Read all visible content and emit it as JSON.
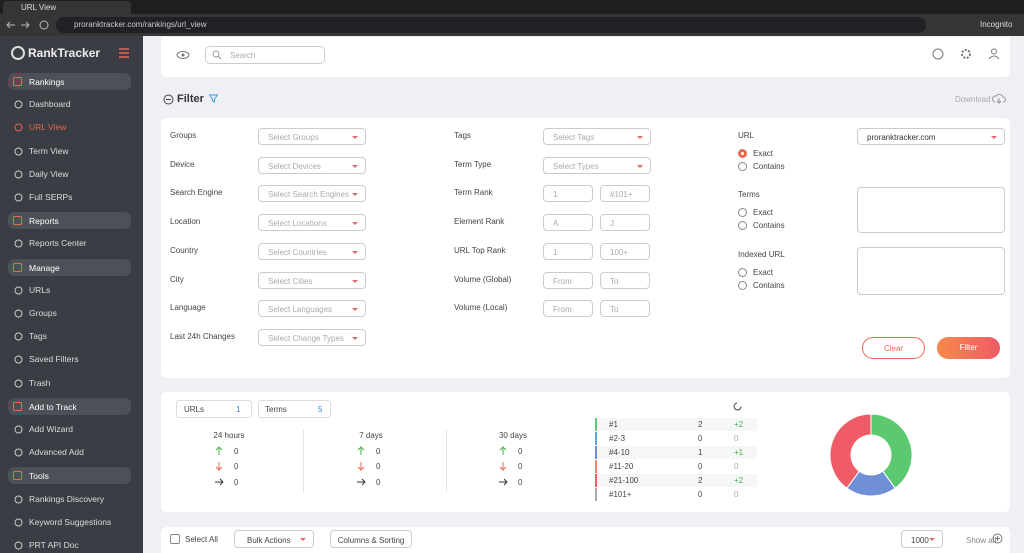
{
  "browser": {
    "tab_title": "URL View",
    "url": "proranktracker.com/rankings/url_view",
    "incognito": "Incognito"
  },
  "sidebar": {
    "logo": "RankTracker",
    "sections": [
      {
        "title": "Rankings",
        "items": [
          "Dashboard",
          "URL View",
          "Term View",
          "Daily View",
          "Full SERPs"
        ]
      },
      {
        "title": "Reports",
        "items": [
          "Reports Center"
        ]
      },
      {
        "title": "Manage",
        "items": [
          "URLs",
          "Groups",
          "Tags",
          "Saved Filters",
          "Trash"
        ]
      },
      {
        "title": "Add to Track",
        "items": [
          "Add Wizard",
          "Advanced Add"
        ]
      },
      {
        "title": "Tools",
        "items": [
          "Rankings Discovery",
          "Keyword Suggestions",
          "PRT API Doc"
        ]
      }
    ]
  },
  "topbar": {
    "search_placeholder": "Search"
  },
  "filter": {
    "title": "Filter",
    "download": "Download",
    "left": [
      {
        "label": "Groups",
        "placeholder": "Select Groups"
      },
      {
        "label": "Device",
        "placeholder": "Select Devices"
      },
      {
        "label": "Search Engine",
        "placeholder": "Select Search Engines"
      },
      {
        "label": "Location",
        "placeholder": "Select Locations"
      },
      {
        "label": "Country",
        "placeholder": "Select Countries"
      },
      {
        "label": "City",
        "placeholder": "Select Cities"
      },
      {
        "label": "Language",
        "placeholder": "Select Languages"
      },
      {
        "label": "Last 24h Changes",
        "placeholder": "Select Change Types"
      }
    ],
    "middle": [
      {
        "label": "Tags",
        "placeholder": "Select Tags"
      },
      {
        "label": "Term Type",
        "placeholder": "Select Types"
      },
      {
        "label": "Term Rank",
        "from": "1",
        "to": "#101+"
      },
      {
        "label": "Element Rank",
        "from": "A",
        "to": "J"
      },
      {
        "label": "URL Top Rank",
        "from": "1",
        "to": "100+"
      },
      {
        "label": "Volume (Global)",
        "from": "From",
        "to": "To"
      },
      {
        "label": "Volume (Local)",
        "from": "From",
        "to": "To"
      }
    ],
    "right": [
      {
        "label": "URL",
        "select": "proranktracker.com",
        "options": [
          "Exact",
          "Contains"
        ]
      },
      {
        "label": "Terms",
        "options": [
          "Exact",
          "Contains"
        ]
      },
      {
        "label": "Indexed URL",
        "options": [
          "Exact",
          "Contains"
        ]
      }
    ],
    "clear": "Clear",
    "submit": "Filter"
  },
  "stats": {
    "urls_label": "URLs",
    "urls": 1,
    "terms_label": "Terms",
    "terms": 5,
    "periods": [
      {
        "label": "24 hours",
        "values": [
          0,
          0,
          0
        ]
      },
      {
        "label": "7 days",
        "values": [
          0,
          0,
          0
        ]
      },
      {
        "label": "30 days",
        "values": [
          0,
          0,
          0
        ]
      }
    ]
  },
  "ranks": {
    "rows": [
      {
        "label": "#1",
        "count": 2,
        "change": "+2",
        "color": "#5cc971"
      },
      {
        "label": "#2-3",
        "count": 0,
        "change": "0",
        "color": "#5aa9d6"
      },
      {
        "label": "#4-10",
        "count": 1,
        "change": "+1",
        "color": "#6f8fd6"
      },
      {
        "label": "#11-20",
        "count": 0,
        "change": "0",
        "color": "#f0876a"
      },
      {
        "label": "#21-100",
        "count": 2,
        "change": "+2",
        "color": "#ef5b66"
      },
      {
        "label": "#101+",
        "count": 0,
        "change": "0",
        "color": "#aaaaaa"
      }
    ]
  },
  "toolbar": {
    "select_all": "Select All",
    "bulk": "Bulk Actions",
    "columns": "Columns & Sorting",
    "per_page": "1000",
    "show_all": "Show all"
  }
}
